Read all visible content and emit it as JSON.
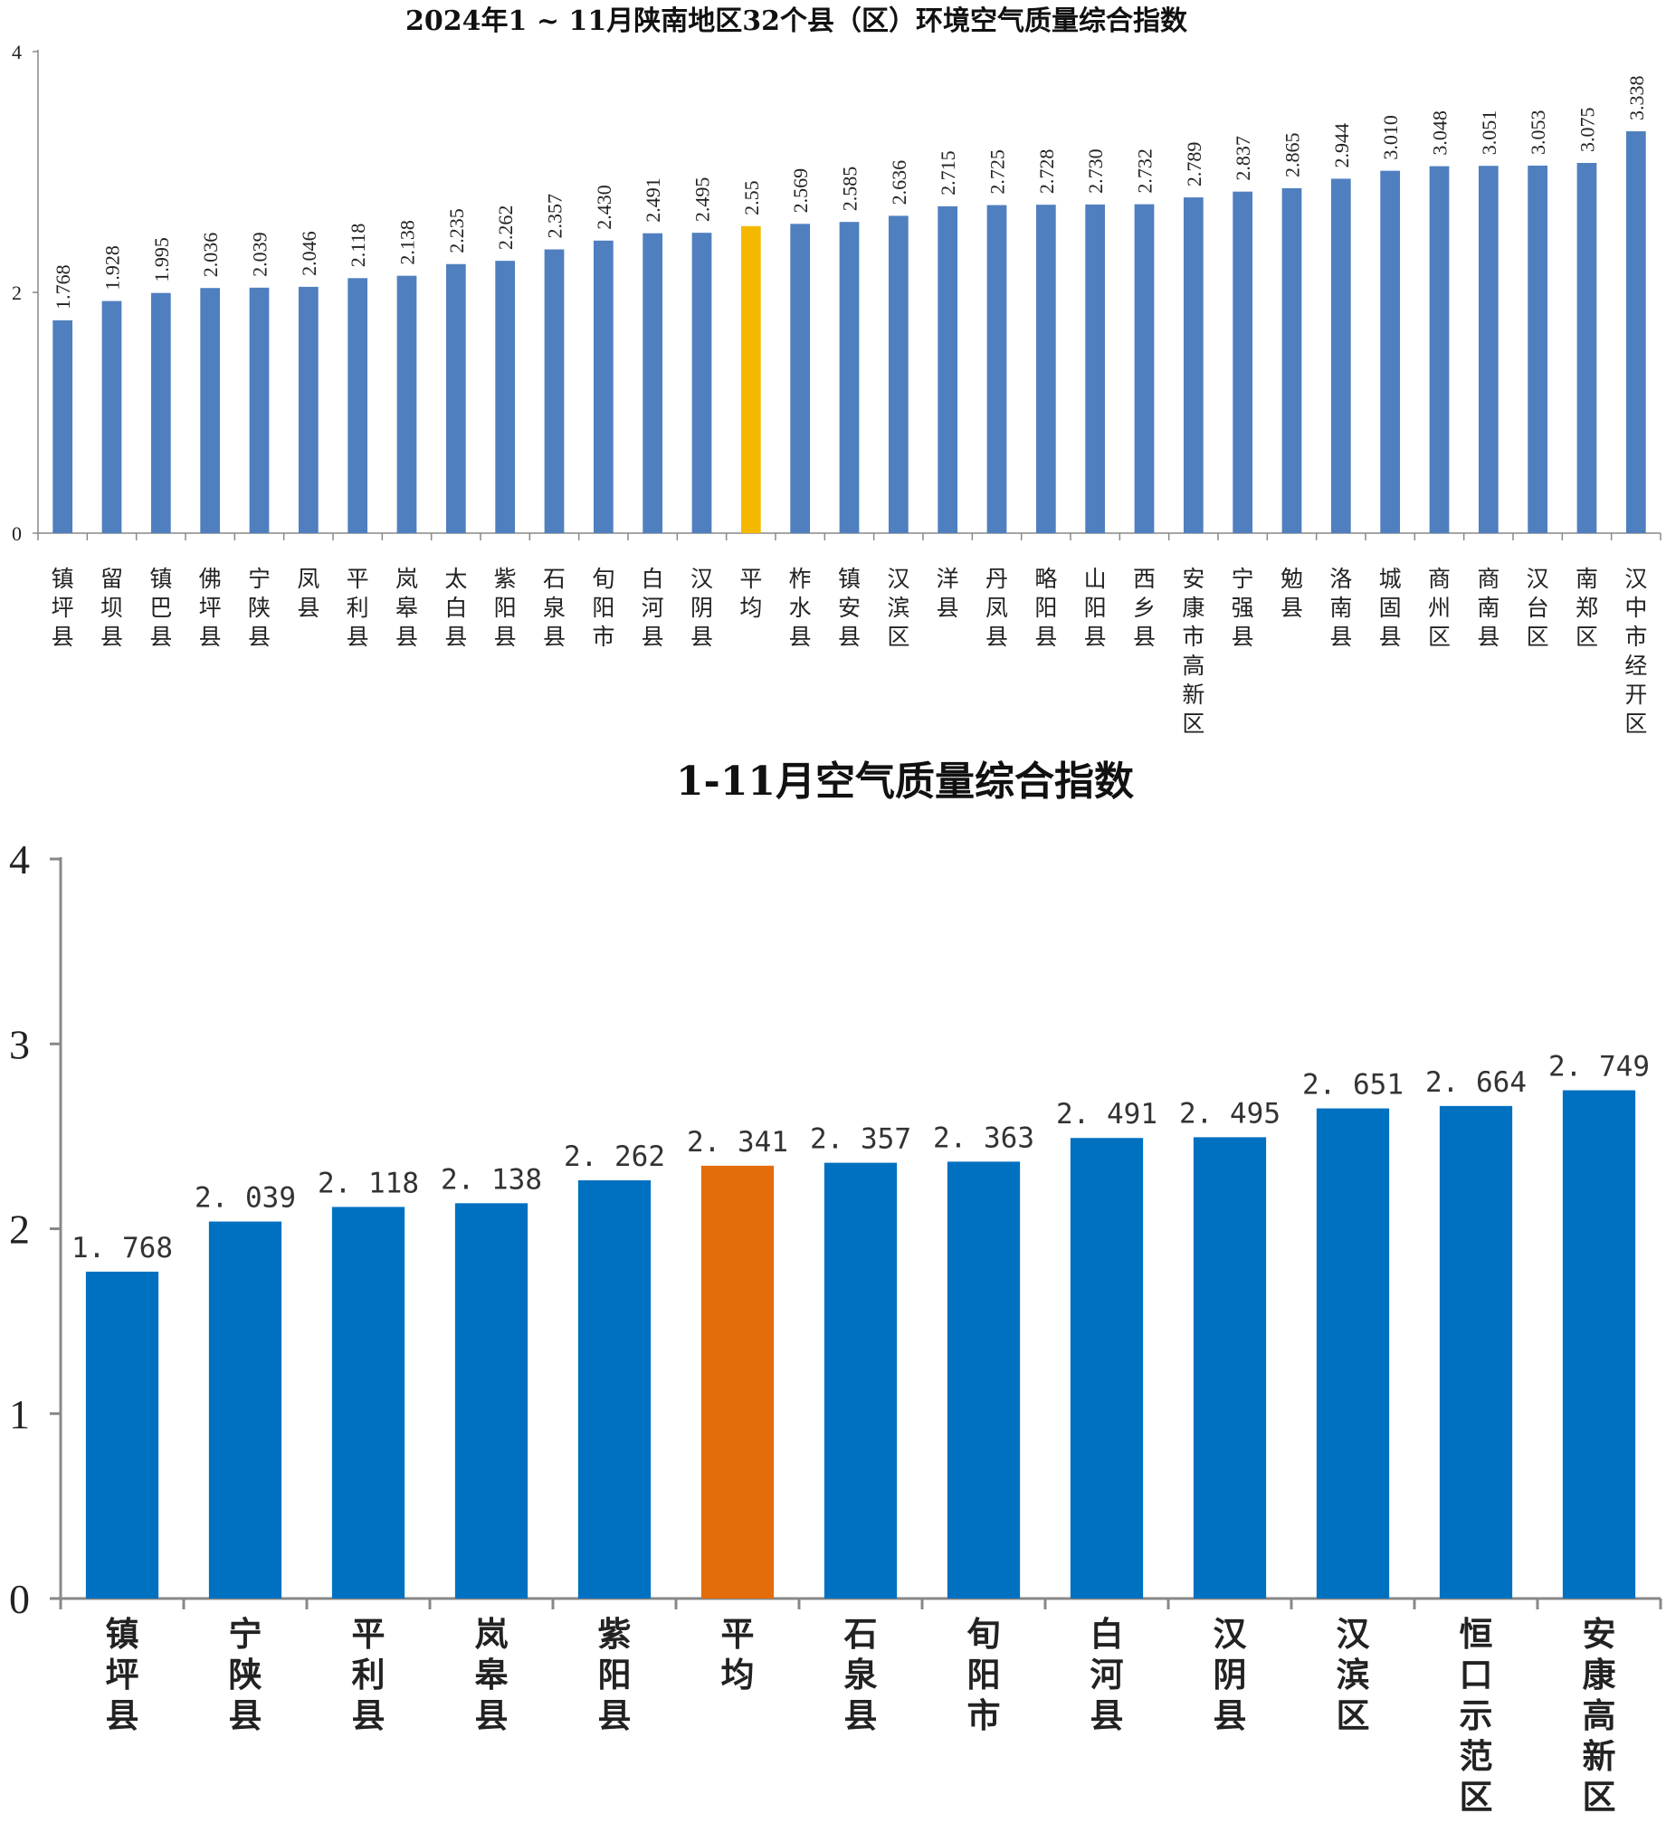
{
  "chart_data": [
    {
      "type": "bar",
      "title": "2024年1 ~ 11月陕南地区32个县（区）环境空气质量综合指数",
      "ylim": [
        0,
        4
      ],
      "yticks": [
        "0",
        "2",
        "4"
      ],
      "grid": false,
      "legend": "none",
      "colors": {
        "bar": "#4f7fbf",
        "highlight": "#f5b800"
      },
      "highlight": "平均",
      "categories": [
        "镇坪县",
        "留坝县",
        "镇巴县",
        "佛坪县",
        "宁陕县",
        "凤县",
        "平利县",
        "岚皋县",
        "太白县",
        "紫阳县",
        "石泉县",
        "旬阳市",
        "白河县",
        "汉阴县",
        "平均",
        "柞水县",
        "镇安县",
        "汉滨区",
        "洋县",
        "丹凤县",
        "略阳县",
        "山阳县",
        "西乡县",
        "安康市高新区",
        "宁强县",
        "勉县",
        "洛南县",
        "城固县",
        "商州区",
        "商南县",
        "汉台区",
        "南郑区",
        "汉中市经开区"
      ],
      "values": [
        1.768,
        1.928,
        1.995,
        2.036,
        2.039,
        2.046,
        2.118,
        2.138,
        2.235,
        2.262,
        2.357,
        2.43,
        2.491,
        2.495,
        2.55,
        2.569,
        2.585,
        2.636,
        2.715,
        2.725,
        2.728,
        2.73,
        2.732,
        2.789,
        2.837,
        2.865,
        2.944,
        3.01,
        3.048,
        3.051,
        3.053,
        3.075,
        3.338
      ],
      "labels": [
        "1.768",
        "1.928",
        "1.995",
        "2.036",
        "2.039",
        "2.046",
        "2.118",
        "2.138",
        "2.235",
        "2.262",
        "2.357",
        "2.430",
        "2.491",
        "2.495",
        "2.55",
        "2.569",
        "2.585",
        "2.636",
        "2.715",
        "2.725",
        "2.728",
        "2.730",
        "2.732",
        "2.789",
        "2.837",
        "2.865",
        "2.944",
        "3.010",
        "3.048",
        "3.051",
        "3.053",
        "3.075",
        "3.338"
      ]
    },
    {
      "type": "bar",
      "title": "1-11月空气质量综合指数",
      "ylim": [
        0,
        4
      ],
      "yticks": [
        "0",
        "1",
        "2",
        "3",
        "4"
      ],
      "grid": false,
      "legend": "none",
      "colors": {
        "bar": "#0070c0",
        "highlight": "#e46c0a"
      },
      "highlight": "平均",
      "categories": [
        "镇坪县",
        "宁陕县",
        "平利县",
        "岚皋县",
        "紫阳县",
        "平均",
        "石泉县",
        "旬阳市",
        "白河县",
        "汉阴县",
        "汉滨区",
        "恒口示范区",
        "安康高新区"
      ],
      "values": [
        1.768,
        2.039,
        2.118,
        2.138,
        2.262,
        2.341,
        2.357,
        2.363,
        2.491,
        2.495,
        2.651,
        2.664,
        2.749
      ],
      "labels": [
        "1. 768",
        "2. 039",
        "2. 118",
        "2. 138",
        "2. 262",
        "2. 341",
        "2. 357",
        "2. 363",
        "2. 491",
        "2. 495",
        "2. 651",
        "2. 664",
        "2. 749"
      ]
    }
  ]
}
